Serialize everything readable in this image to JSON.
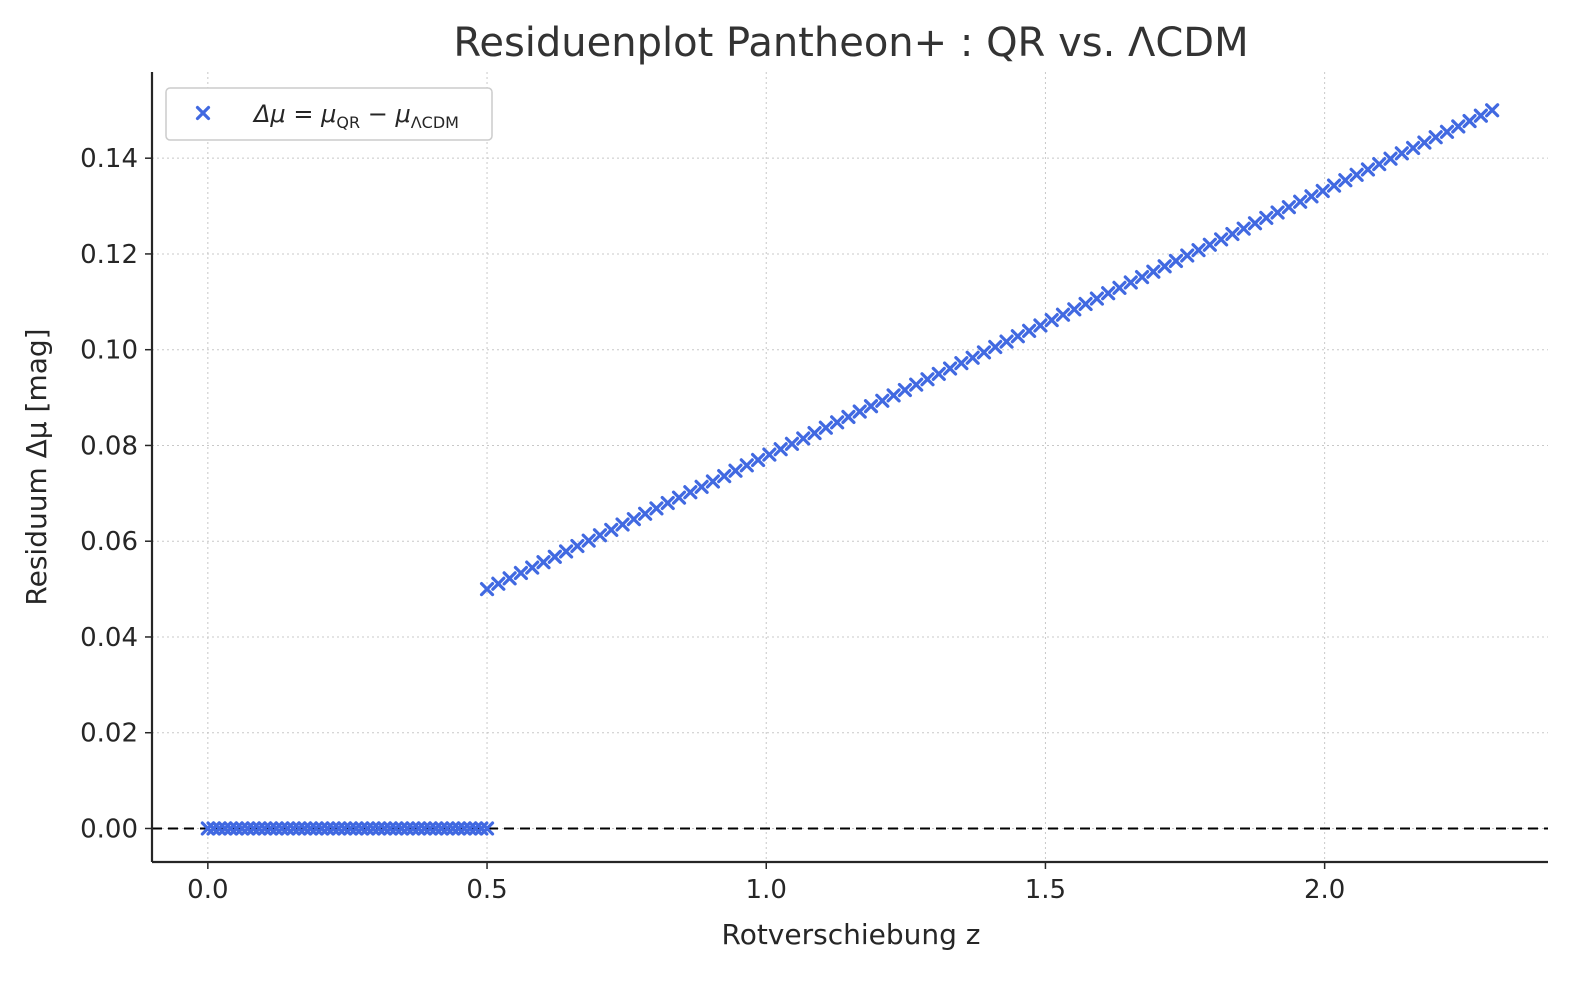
{
  "chart_data": {
    "type": "scatter",
    "title": "Residuenplot Pantheon+ : QR vs. ΛCDM",
    "xlabel": "Rotverschiebung z",
    "ylabel": "Residuum Δμ [mag]",
    "xlim": [
      -0.1,
      2.4
    ],
    "ylim": [
      -0.007,
      0.158
    ],
    "grid": true,
    "grid_style": "dotted",
    "legend_position": "top-left",
    "x_ticks": [
      0.0,
      0.5,
      1.0,
      1.5,
      2.0
    ],
    "x_tick_labels": [
      "0.0",
      "0.5",
      "1.0",
      "1.5",
      "2.0"
    ],
    "y_ticks": [
      0.0,
      0.02,
      0.04,
      0.06,
      0.08,
      0.1,
      0.12,
      0.14
    ],
    "y_tick_labels": [
      "0.00",
      "0.02",
      "0.04",
      "0.06",
      "0.08",
      "0.10",
      "0.12",
      "0.14"
    ],
    "reference_line": {
      "y": 0.0,
      "style": "dashed",
      "color": "#000000"
    },
    "marker": "x",
    "series": [
      {
        "name": "Δμ = μQR − μΛCDM",
        "color": "#4169E1",
        "segments": [
          {
            "x_start": 0.0,
            "x_end": 0.5,
            "count": 50,
            "y_at_start": 0.0,
            "y_at_end": 0.0
          },
          {
            "x_start": 0.5,
            "x_end": 2.3,
            "count": 90,
            "y_at_start": 0.05,
            "y_at_end": 0.15
          }
        ]
      }
    ]
  }
}
